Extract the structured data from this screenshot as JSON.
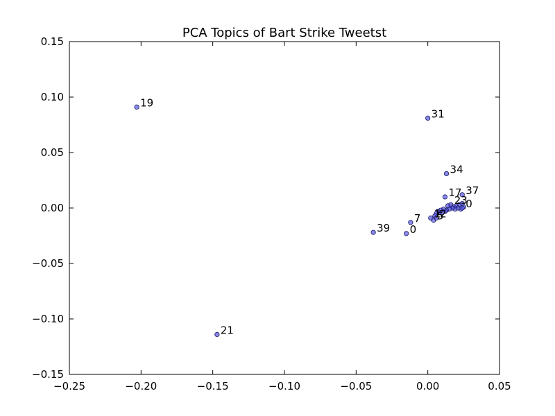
{
  "chart_data": {
    "type": "scatter",
    "title": "PCA Topics of Bart Strike Tweetst",
    "xlabel": "",
    "ylabel": "",
    "xlim": [
      -0.25,
      0.05
    ],
    "ylim": [
      -0.15,
      0.15
    ],
    "xticks": [
      -0.25,
      -0.2,
      -0.15,
      -0.1,
      -0.05,
      0.0,
      0.05
    ],
    "xtick_labels": [
      "−0.25",
      "−0.20",
      "−0.15",
      "−0.10",
      "−0.05",
      "0.00",
      "0.05"
    ],
    "yticks": [
      0.15,
      0.1,
      0.05,
      0.0,
      -0.05,
      -0.1,
      -0.15
    ],
    "ytick_labels": [
      "0.15",
      "0.10",
      "0.05",
      "0.00",
      "−0.05",
      "−0.10",
      "−0.15"
    ],
    "grid": false,
    "marker_color": "#5555dd",
    "points": [
      {
        "label": "19",
        "x": -0.203,
        "y": 0.091
      },
      {
        "label": "31",
        "x": 0.0,
        "y": 0.081
      },
      {
        "label": "34",
        "x": 0.013,
        "y": 0.031
      },
      {
        "label": "37",
        "x": 0.024,
        "y": 0.012
      },
      {
        "label": "17",
        "x": 0.012,
        "y": 0.01
      },
      {
        "label": "23",
        "x": 0.016,
        "y": 0.003
      },
      {
        "label": "",
        "x": 0.018,
        "y": 0.001
      },
      {
        "label": "",
        "x": 0.02,
        "y": 0.002
      },
      {
        "label": "",
        "x": 0.022,
        "y": 0.003
      },
      {
        "label": "",
        "x": 0.024,
        "y": 0.004
      },
      {
        "label": "",
        "x": 0.025,
        "y": 0.001
      },
      {
        "label": "",
        "x": 0.023,
        "y": -0.001
      },
      {
        "label": "",
        "x": 0.021,
        "y": 0.0
      },
      {
        "label": "",
        "x": 0.019,
        "y": -0.001
      },
      {
        "label": "",
        "x": 0.017,
        "y": 0.0
      },
      {
        "label": "",
        "x": 0.015,
        "y": -0.001
      },
      {
        "label": "",
        "x": 0.014,
        "y": 0.002
      },
      {
        "label": "",
        "x": 0.013,
        "y": -0.002
      },
      {
        "label": "",
        "x": 0.012,
        "y": -0.003
      },
      {
        "label": "",
        "x": 0.011,
        "y": -0.001
      },
      {
        "label": "",
        "x": 0.01,
        "y": -0.004
      },
      {
        "label": "0",
        "x": 0.024,
        "y": 0.0
      },
      {
        "label": "",
        "x": 0.009,
        "y": -0.002
      },
      {
        "label": "",
        "x": 0.008,
        "y": -0.004
      },
      {
        "label": "",
        "x": 0.007,
        "y": -0.003
      },
      {
        "label": "",
        "x": 0.006,
        "y": -0.005
      },
      {
        "label": "",
        "x": 0.005,
        "y": -0.007
      },
      {
        "label": "1",
        "x": 0.002,
        "y": -0.009
      },
      {
        "label": "5",
        "x": 0.004,
        "y": -0.011
      },
      {
        "label": "2",
        "x": 0.006,
        "y": -0.009
      },
      {
        "label": "7",
        "x": -0.012,
        "y": -0.013
      },
      {
        "label": "0",
        "x": -0.015,
        "y": -0.023
      },
      {
        "label": "39",
        "x": -0.038,
        "y": -0.022
      },
      {
        "label": "21",
        "x": -0.147,
        "y": -0.114
      }
    ]
  }
}
